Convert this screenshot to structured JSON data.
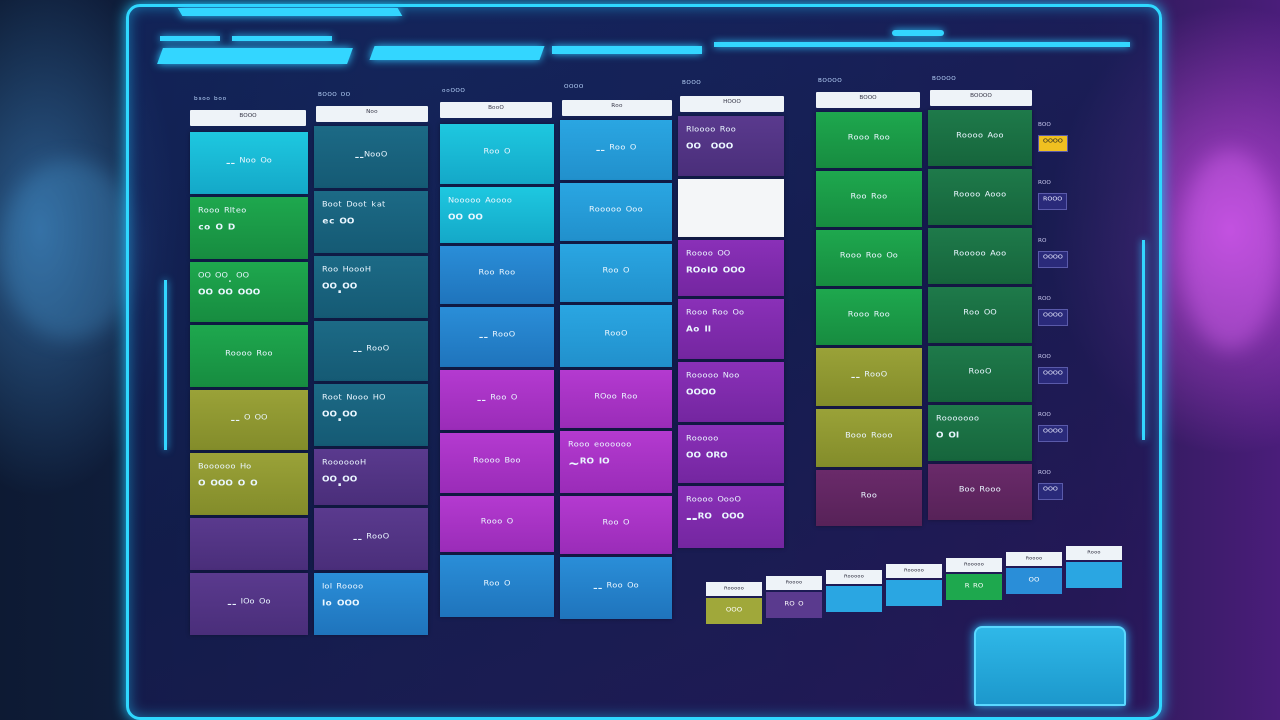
{
  "columns": [
    {
      "label": "ᵇˢᵒᵒ ᵇᵒᵒ",
      "header": "ᴮᴼᴼᴼ",
      "tiles": [
        {
          "l1": "-- ᴺᵒᵒ ᴼᵒ",
          "l2": "",
          "color": "cyan"
        },
        {
          "l1": "ᴿᵒᵒᵒ ᴿᴵᵗᵉᵒ",
          "l2": "ᶜᵒ ᴼ ᴰ",
          "color": "green"
        },
        {
          "l1": "ᴼᴼ ᴼᴼ. ᴼᴼ",
          "l2": "ᴼᴼ ᴼᴼ ᴼᴼᴼ",
          "color": "green"
        },
        {
          "l1": "ᴿᵒᵒᵒᵒ ᴿᵒᵒ",
          "l2": "",
          "color": "green"
        },
        {
          "l1": "-- ᴼ ᴼᴼ",
          "l2": "",
          "color": "olive"
        },
        {
          "l1": "ᴮᵒᵒᵒᵒᵒᵒ ᴴᵒ",
          "l2": "ᴼ ᴼᴼᴼ   ᴼ ᴼ",
          "color": "olive"
        },
        {
          "l1": "",
          "l2": "",
          "color": "purple"
        },
        {
          "l1": "-- ᴵᴼᵒ ᴼᵒ",
          "l2": "",
          "color": "purple"
        }
      ]
    },
    {
      "label": "ᴮᴼᴼᴼ ᴼᴼ",
      "header": "ᴺᵒᵒ",
      "tiles": [
        {
          "l1": "--ᴺᵒᵒᴼ",
          "l2": "",
          "color": "teal"
        },
        {
          "l1": "ᴮᵒᵒᵗ ᴰᵒᵒᵗ ᵏᵃᵗ",
          "l2": "ᵉᶜ ᴼᴼ",
          "color": "teal"
        },
        {
          "l1": "ᴿᵒᵒ ᴴᵒᵒᵒᴴ",
          "l2": "ᴼᴼ.ᴼᴼ",
          "color": "teal"
        },
        {
          "l1": "-- ᴿᵒᵒᴼ",
          "l2": "",
          "color": "teal"
        },
        {
          "l1": "ᴿᵒᵒᵗ ᴺᵒᵒᵒ ᴴᴼ",
          "l2": "ᴼᴼ.ᴼᴼ",
          "color": "teal"
        },
        {
          "l1": "ᴿᵒᵒᵒᵒᵒᵒᴴ",
          "l2": "ᴼᴼ.ᴼᴼ",
          "color": "purple"
        },
        {
          "l1": "-- ᴿᵒᵒᴼ",
          "l2": "",
          "color": "purple"
        },
        {
          "l1": "ᴵᵒᴵ ᴿᵒᵒᵒᵒ",
          "l2": "ᴵᵒ ᴼᴼᴼ",
          "color": "blue"
        }
      ]
    },
    {
      "label": "ᵒᵒᴼᴼᴼ",
      "header": "ᴮᵒᵒᴼ",
      "tiles": [
        {
          "l1": "ᴿᵒᵒ ᴼ",
          "l2": "",
          "color": "cyan"
        },
        {
          "l1": "ᴺᵒᵒᵒᵒᵒ ᴬᵒᵒᵒᵒ",
          "l2": "ᴼᴼ ᴼᴼ",
          "color": "cyan"
        },
        {
          "l1": "ᴿᵒᵒ ᴿᵒᵒ",
          "l2": "",
          "color": "blue"
        },
        {
          "l1": "-- ᴿᵒᵒᴼ",
          "l2": "",
          "color": "blue"
        },
        {
          "l1": "-- ᴿᵒᵒ ᴼ",
          "l2": "",
          "color": "magenta"
        },
        {
          "l1": "ᴿᵒᵒᵒᵒ ᴮᵒᵒ",
          "l2": "",
          "color": "magenta"
        },
        {
          "l1": "ᴿᵒᵒᵒ ᴼ",
          "l2": "",
          "color": "magenta"
        },
        {
          "l1": "ᴿᵒᵒ ᴼ",
          "l2": "",
          "color": "blue"
        }
      ]
    },
    {
      "label": "ᴼᴼᴼᴼ",
      "header": "ᴿᵒᵒ",
      "tiles": [
        {
          "l1": "-- ᴿᵒᵒ ᴼ",
          "l2": "",
          "color": "sky"
        },
        {
          "l1": "ᴿᵒᵒᵒᵒᵒ ᴼᵒᵒ",
          "l2": "",
          "color": "sky"
        },
        {
          "l1": "ᴿᵒᵒ ᴼ",
          "l2": "",
          "color": "sky"
        },
        {
          "l1": "ᴿᵒᵒᴼ",
          "l2": "",
          "color": "sky"
        },
        {
          "l1": "ᴿᴼᵒᵒ ᴿᵒᵒ",
          "l2": "",
          "color": "magenta"
        },
        {
          "l1": "ᴿᵒᵒᵒ ᵉᵒᵒᵒᵒᵒᵒ",
          "l2": "~ᴿᴼ   ᴵᴼ",
          "color": "magenta"
        },
        {
          "l1": "ᴿᵒᵒ ᴼ",
          "l2": "",
          "color": "magenta"
        },
        {
          "l1": "-- ᴿᵒᵒ ᴼᵒ",
          "l2": "",
          "color": "blue"
        }
      ]
    },
    {
      "label": "ᴮᴼᴼᴼ",
      "header": "ᴴᴼᴼᴼ",
      "tiles": [
        {
          "l1": "ᴿᴵᵒᵒᵒᵒ ᴿᵒᵒ",
          "l2": "ᴼᴼ  ᴼᴼᴼ",
          "color": "purple"
        },
        {
          "l1": "",
          "l2": "",
          "color": "white"
        },
        {
          "l1": "ᴿᵒᵒᵒᵒ ᴼᴼ",
          "l2": "ᴿᴼᵒᴵᴼ ᴼᴼᴼ",
          "color": "violet"
        },
        {
          "l1": "ᴿᵒᵒᵒ ᴿᵒᵒ ᴼᵒ",
          "l2": "ᴬᵒ ᴵᴵ",
          "color": "violet"
        },
        {
          "l1": "ᴿᵒᵒᵒᵒᵒ ᴺᵒᵒ",
          "l2": "ᴼᴼᴼᴼ",
          "color": "violet"
        },
        {
          "l1": "ᴿᵒᵒᵒᵒᵒ",
          "l2": "ᴼᴼ ᴼᴿᴼ",
          "color": "violet"
        },
        {
          "l1": "ᴿᵒᵒᵒᵒ ᴼᵒᵒᴼ",
          "l2": "--ᴿᴼ  ᴼᴼᴼ",
          "color": "violet"
        }
      ]
    },
    {
      "label": "ᴮᴼᴼᴼᴼ",
      "header": "ᴮᴼᴼᴼ",
      "tiles": [
        {
          "l1": "ᴿᵒᵒᵒ ᴿᵒᵒ",
          "l2": "",
          "color": "green"
        },
        {
          "l1": "ᴿᵒᵒ ᴿᵒᵒ",
          "l2": "",
          "color": "green"
        },
        {
          "l1": "ᴿᵒᵒᵒ ᴿᵒᵒ ᴼᵒ",
          "l2": "",
          "color": "green"
        },
        {
          "l1": "ᴿᵒᵒᵒ ᴿᵒᵒ",
          "l2": "",
          "color": "green"
        },
        {
          "l1": "-- ᴿᵒᵒᴼ",
          "l2": "",
          "color": "olive"
        },
        {
          "l1": "ᴮᵒᵒᵒ ᴿᵒᵒᵒ",
          "l2": "",
          "color": "olive"
        },
        {
          "l1": "ᴿᵒᵒ",
          "l2": "",
          "color": "plum"
        }
      ]
    },
    {
      "label": "ᴮᴼᴼᴼᴼ",
      "header": "ᴮᴼᴼᴼᴼ",
      "tiles": [
        {
          "l1": "ᴿᵒᵒᵒᵒ ᴬᵒᵒ",
          "l2": "",
          "color": "dkgreen"
        },
        {
          "l1": "ᴿᵒᵒᵒᵒ ᴬᵒᵒᵒ",
          "l2": "",
          "color": "dkgreen"
        },
        {
          "l1": "ᴿᵒᵒᵒᵒᵒ ᴬᵒᵒ",
          "l2": "",
          "color": "dkgreen"
        },
        {
          "l1": "ᴿᵒᵒ ᴼᴼ",
          "l2": "",
          "color": "dkgreen"
        },
        {
          "l1": "ᴿᵒᵒᴼ",
          "l2": "",
          "color": "dkgreen"
        },
        {
          "l1": "ᴿᵒᵒᵒᵒᵒᵒᵒ",
          "l2": "ᴼ ᴼᴵ",
          "color": "dkgreen"
        },
        {
          "l1": "ᴮᵒᵒ ᴿᵒᵒᵒ",
          "l2": "",
          "color": "plum"
        }
      ]
    }
  ],
  "side_items": [
    {
      "label": "ᴮᴼᴼ",
      "value": "ᴼᴼᴼᴼ",
      "highlight": true
    },
    {
      "label": "ᴿᴼᴼ",
      "value": "ᴿᴼᴼᴼ",
      "highlight": false
    },
    {
      "label": "ᴿᴼ",
      "value": "ᴼᴼᴼᴼ",
      "highlight": false
    },
    {
      "label": "ᴿᴼᴼ",
      "value": "ᴼᴼᴼᴼ",
      "highlight": false
    },
    {
      "label": "ᴿᴼᴼ",
      "value": "ᴼᴼᴼᴼ",
      "highlight": false
    },
    {
      "label": "ᴿᴼᴼ",
      "value": "ᴼᴼᴼᴼ",
      "highlight": false
    },
    {
      "label": "ᴿᴼᴼ",
      "value": "ᴼᴼᴼ",
      "highlight": false
    }
  ],
  "tags": [
    {
      "header": "ᴿᵒᵒᵒᵒᵒ",
      "value": "ᴼᴼᴼ",
      "color": "lime"
    },
    {
      "header": "ᴿᵒᵒᵒᵒ",
      "value": "ᴿᴼ ᴼ",
      "color": "purple"
    },
    {
      "header": "ᴿᵒᵒᵒᵒᵒ",
      "value": "",
      "color": "sky"
    },
    {
      "header": "ᴿᵒᵒᵒᵒᵒ",
      "value": "",
      "color": "sky"
    },
    {
      "header": "ᴿᵒᵒᵒᵒᵒ",
      "value": "ᴿ ᴿᴼ",
      "color": "green"
    },
    {
      "header": "ᴿᵒᵒᵒᵒ",
      "value": "ᴼᴼ",
      "color": "blue"
    },
    {
      "header": "ᴿᵒᵒᵒ",
      "value": "",
      "color": "sky"
    }
  ]
}
